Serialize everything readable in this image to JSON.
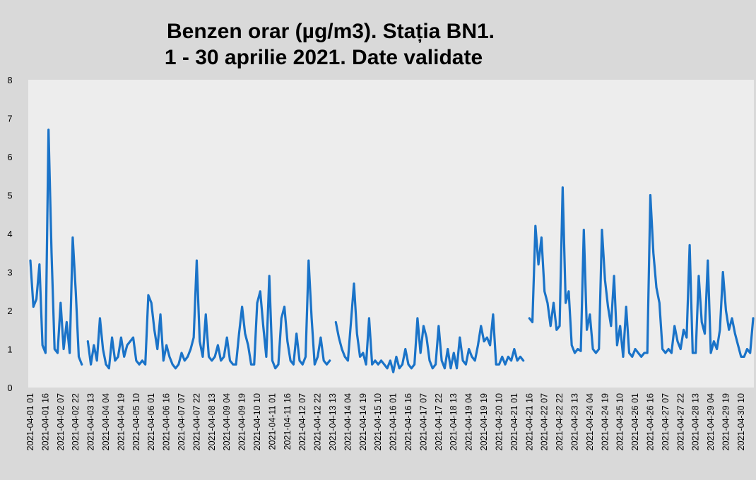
{
  "chart_data": {
    "type": "line",
    "title": "Benzen orar (µg/m3). Stația BN1.",
    "subtitle": "1 - 30 aprilie 2021. Date validate",
    "categories": [
      "2021-04-01 01",
      null,
      null,
      null,
      null,
      "2021-04-01 16",
      null,
      null,
      null,
      null,
      "2021-04-02 07",
      null,
      null,
      null,
      null,
      "2021-04-02 22",
      null,
      null,
      null,
      null,
      "2021-04-03 13",
      null,
      null,
      null,
      null,
      "2021-04-04 04",
      null,
      null,
      null,
      null,
      "2021-04-04 19",
      null,
      null,
      null,
      null,
      "2021-04-05 10",
      null,
      null,
      null,
      null,
      "2021-04-06 01",
      null,
      null,
      null,
      null,
      "2021-04-06 16",
      null,
      null,
      null,
      null,
      "2021-04-07 07",
      null,
      null,
      null,
      null,
      "2021-04-07 22",
      null,
      null,
      null,
      null,
      "2021-04-08 13",
      null,
      null,
      null,
      null,
      "2021-04-09 04",
      null,
      null,
      null,
      null,
      "2021-04-09 19",
      null,
      null,
      null,
      null,
      "2021-04-10 10",
      null,
      null,
      null,
      null,
      "2021-04-11 01",
      null,
      null,
      null,
      null,
      "2021-04-11 16",
      null,
      null,
      null,
      null,
      "2021-04-12 07",
      null,
      null,
      null,
      null,
      "2021-04-12 22",
      null,
      null,
      null,
      null,
      "2021-04-13 13",
      null,
      null,
      null,
      null,
      "2021-04-14 04",
      null,
      null,
      null,
      null,
      "2021-04-14 19",
      null,
      null,
      null,
      null,
      "2021-04-15 10",
      null,
      null,
      null,
      null,
      "2021-04-16 01",
      null,
      null,
      null,
      null,
      "2021-04-16 16",
      null,
      null,
      null,
      null,
      "2021-04-17 07",
      null,
      null,
      null,
      null,
      "2021-04-17 22",
      null,
      null,
      null,
      null,
      "2021-04-18 13",
      null,
      null,
      null,
      null,
      "2021-04-19 04",
      null,
      null,
      null,
      null,
      "2021-04-19 19",
      null,
      null,
      null,
      null,
      "2021-04-20 10",
      null,
      null,
      null,
      null,
      "2021-04-21 01",
      null,
      null,
      null,
      null,
      "2021-04-21 16",
      null,
      null,
      null,
      null,
      "2021-04-22 07",
      null,
      null,
      null,
      null,
      "2021-04-22 22",
      null,
      null,
      null,
      null,
      "2021-04-23 13",
      null,
      null,
      null,
      null,
      "2021-04-24 04",
      null,
      null,
      null,
      null,
      "2021-04-24 19",
      null,
      null,
      null,
      null,
      "2021-04-25 10",
      null,
      null,
      null,
      null,
      "2021-04-26 01",
      null,
      null,
      null,
      null,
      "2021-04-26 16",
      null,
      null,
      null,
      null,
      "2021-04-27 07",
      null,
      null,
      null,
      null,
      "2021-04-27 22",
      null,
      null,
      null,
      null,
      "2021-04-28 13",
      null,
      null,
      null,
      null,
      "2021-04-29 04",
      null,
      null,
      null,
      null,
      "2021-04-29 19",
      null,
      null,
      null,
      null,
      "2021-04-30 10",
      null,
      null,
      null,
      null
    ],
    "values": [
      3.3,
      2.1,
      2.3,
      3.2,
      1.1,
      0.9,
      6.7,
      3.5,
      1.0,
      0.9,
      2.2,
      1.0,
      1.7,
      0.9,
      3.9,
      2.5,
      0.8,
      0.6,
      null,
      1.2,
      0.6,
      1.1,
      0.7,
      1.8,
      1.0,
      0.6,
      0.5,
      1.3,
      0.7,
      0.8,
      1.3,
      0.8,
      1.1,
      1.2,
      1.3,
      0.7,
      0.6,
      0.7,
      0.6,
      2.4,
      2.2,
      1.5,
      1.0,
      1.9,
      0.7,
      1.1,
      0.8,
      0.6,
      0.5,
      0.6,
      0.9,
      0.7,
      0.8,
      1.0,
      1.3,
      3.3,
      1.2,
      0.8,
      1.9,
      0.8,
      0.7,
      0.8,
      1.1,
      0.7,
      0.8,
      1.3,
      0.7,
      0.6,
      0.6,
      1.4,
      2.1,
      1.4,
      1.1,
      0.6,
      0.6,
      2.2,
      2.5,
      1.6,
      0.8,
      2.9,
      0.7,
      0.5,
      0.6,
      1.8,
      2.1,
      1.2,
      0.7,
      0.6,
      1.4,
      0.7,
      0.6,
      0.8,
      3.3,
      1.8,
      0.6,
      0.8,
      1.3,
      0.7,
      0.6,
      0.7,
      null,
      1.7,
      1.3,
      1.0,
      0.8,
      0.7,
      1.7,
      2.7,
      1.4,
      0.8,
      0.9,
      0.6,
      1.8,
      0.6,
      0.7,
      0.6,
      0.7,
      0.6,
      0.5,
      0.7,
      0.4,
      0.8,
      0.5,
      0.6,
      1.0,
      0.6,
      0.5,
      0.6,
      1.8,
      0.9,
      1.6,
      1.3,
      0.7,
      0.5,
      0.6,
      1.6,
      0.7,
      0.5,
      1.0,
      0.5,
      0.9,
      0.5,
      1.3,
      0.7,
      0.6,
      1.0,
      0.8,
      0.7,
      1.1,
      1.6,
      1.2,
      1.3,
      1.1,
      1.9,
      0.6,
      0.6,
      0.8,
      0.6,
      0.8,
      0.7,
      1.0,
      0.7,
      0.8,
      0.7,
      null,
      1.8,
      1.7,
      4.2,
      3.2,
      3.9,
      2.5,
      2.2,
      1.6,
      2.2,
      1.5,
      1.6,
      5.2,
      2.2,
      2.5,
      1.1,
      0.9,
      1.0,
      0.95,
      4.1,
      1.5,
      1.9,
      1.0,
      0.9,
      1.0,
      4.1,
      2.8,
      2.1,
      1.6,
      2.9,
      1.1,
      1.6,
      0.8,
      2.1,
      0.9,
      0.8,
      1.0,
      0.9,
      0.8,
      0.9,
      0.9,
      5.0,
      3.5,
      2.6,
      2.2,
      1.0,
      0.9,
      1.0,
      0.9,
      1.6,
      1.2,
      1.0,
      1.5,
      1.3,
      3.7,
      0.9,
      0.9,
      2.9,
      1.7,
      1.4,
      3.3,
      0.9,
      1.2,
      1.0,
      1.5,
      3.0,
      2.0,
      1.5,
      1.8,
      1.4,
      1.1,
      0.8,
      0.8,
      1.0,
      0.9,
      1.8
    ],
    "color": "#1a73c8",
    "ylim": [
      0,
      8
    ],
    "yticks": [
      0,
      1,
      2,
      3,
      4,
      5,
      6,
      7,
      8
    ],
    "grid": false
  }
}
